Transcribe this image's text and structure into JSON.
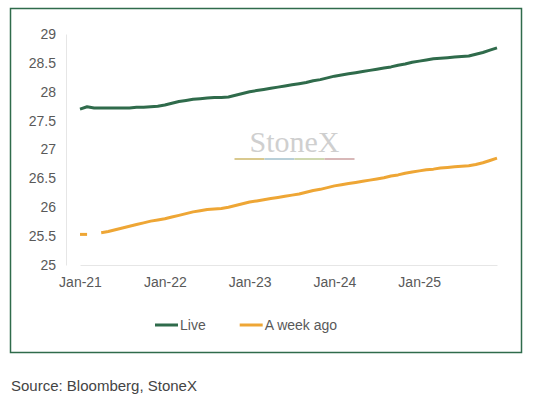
{
  "chart_data": {
    "type": "line",
    "categories": [
      "Jan-21",
      null,
      null,
      null,
      null,
      null,
      null,
      null,
      null,
      null,
      null,
      null,
      "Jan-22",
      null,
      null,
      null,
      null,
      null,
      null,
      null,
      null,
      null,
      null,
      null,
      "Jan-23",
      null,
      null,
      null,
      null,
      null,
      null,
      null,
      null,
      null,
      null,
      null,
      "Jan-24",
      null,
      null,
      null,
      null,
      null,
      null,
      null,
      null,
      null,
      null,
      null,
      "Jan-25",
      null,
      null,
      null,
      null,
      null,
      null,
      null,
      null,
      null,
      null,
      null
    ],
    "series": [
      {
        "name": "Live",
        "color": "#2f6b4b",
        "values": [
          27.7,
          27.74,
          27.72,
          27.72,
          27.72,
          27.72,
          27.72,
          27.72,
          27.73,
          27.73,
          27.74,
          27.75,
          27.77,
          27.8,
          27.83,
          27.85,
          27.87,
          27.88,
          27.89,
          27.9,
          27.9,
          27.91,
          27.94,
          27.97,
          28.0,
          28.02,
          28.04,
          28.06,
          28.08,
          28.1,
          28.12,
          28.14,
          28.16,
          28.19,
          28.21,
          28.24,
          28.27,
          28.29,
          28.31,
          28.33,
          28.35,
          28.37,
          28.39,
          28.41,
          28.43,
          28.46,
          28.48,
          28.51,
          28.53,
          28.55,
          28.57,
          28.58,
          28.59,
          28.6,
          28.61,
          28.62,
          28.65,
          28.68,
          28.72,
          28.76
        ]
      },
      {
        "name": "A week ago",
        "color": "#eea635",
        "values": [
          25.53,
          25.53,
          null,
          25.56,
          25.58,
          25.61,
          25.64,
          25.67,
          25.7,
          25.73,
          25.76,
          25.78,
          25.8,
          25.83,
          25.86,
          25.89,
          25.92,
          25.94,
          25.96,
          25.97,
          25.98,
          26.0,
          26.03,
          26.06,
          26.09,
          26.11,
          26.13,
          26.15,
          26.17,
          26.19,
          26.21,
          26.23,
          26.26,
          26.29,
          26.31,
          26.34,
          26.37,
          26.39,
          26.41,
          26.43,
          26.45,
          26.47,
          26.49,
          26.51,
          26.54,
          26.56,
          26.59,
          26.61,
          26.63,
          26.65,
          26.66,
          26.68,
          26.69,
          26.7,
          26.71,
          26.72,
          26.74,
          26.77,
          26.81,
          26.85
        ]
      }
    ],
    "ylim": [
      25,
      29
    ],
    "yticks": [
      25,
      25.5,
      26,
      26.5,
      27,
      27.5,
      28,
      28.5,
      29
    ],
    "grid": false,
    "legend": "bottom",
    "watermark": "StoneX",
    "source": "Source: Bloomberg, StoneX"
  }
}
